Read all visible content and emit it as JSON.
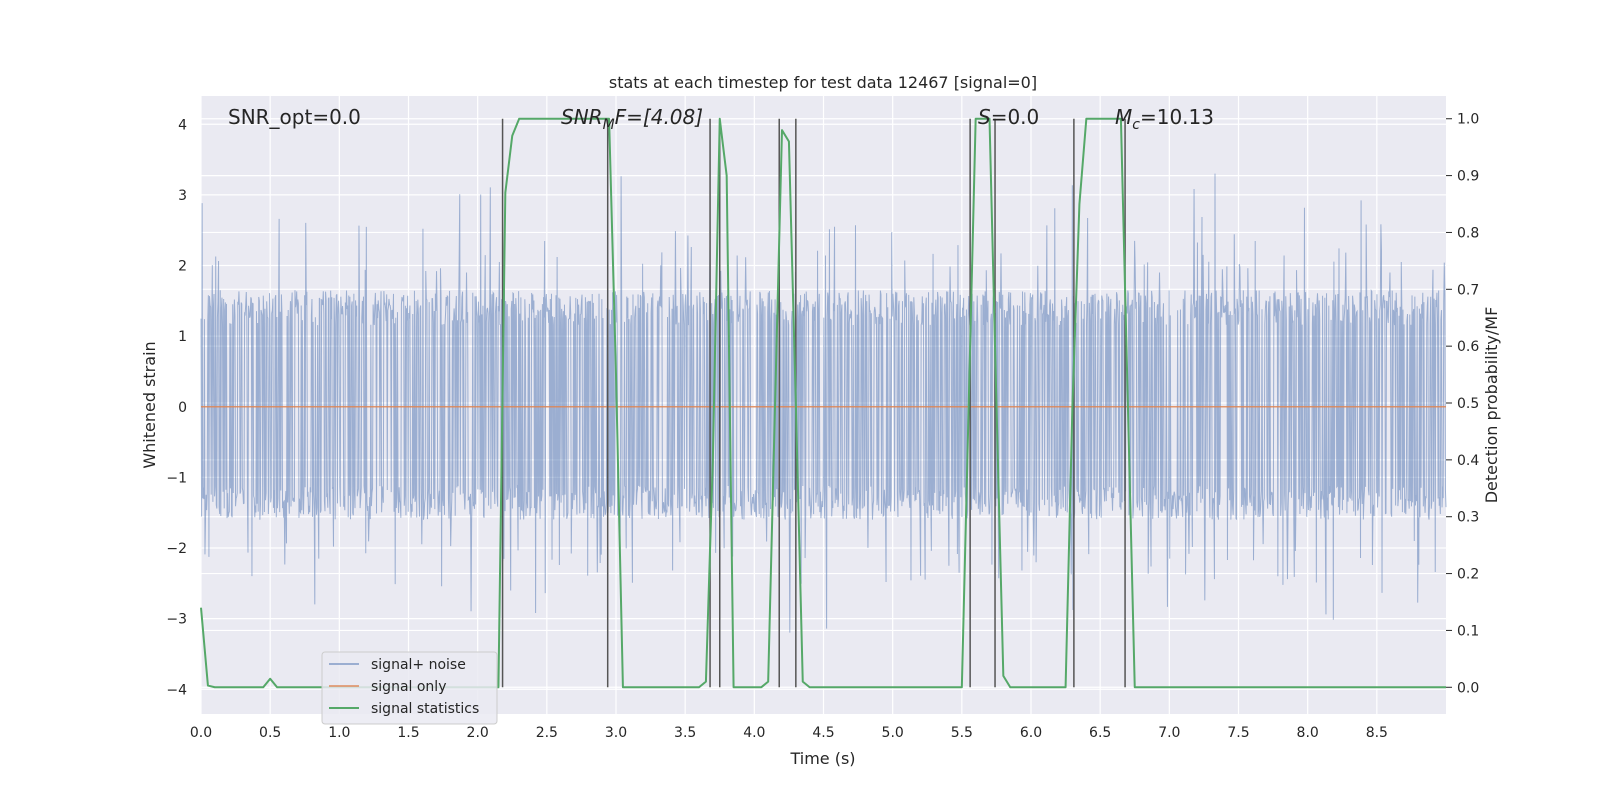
{
  "chart_data": {
    "type": "line",
    "title": "stats at each timestep for test data 12467 [signal=0]",
    "xlabel": "Time (s)",
    "ylabel": "Whitened strain",
    "y2label": "Detection probability/MF",
    "xlim": [
      0.0,
      9.0
    ],
    "ylim": [
      -4.35,
      4.4
    ],
    "y2lim": [
      -0.047,
      1.04
    ],
    "xticks": [
      0.0,
      0.5,
      1.0,
      1.5,
      2.0,
      2.5,
      3.0,
      3.5,
      4.0,
      4.5,
      5.0,
      5.5,
      6.0,
      6.5,
      7.0,
      7.5,
      8.0,
      8.5
    ],
    "xtick_labels": [
      "0.0",
      "0.5",
      "1.0",
      "1.5",
      "2.0",
      "2.5",
      "3.0",
      "3.5",
      "4.0",
      "4.5",
      "5.0",
      "5.5",
      "6.0",
      "6.5",
      "7.0",
      "7.5",
      "8.0",
      "8.5"
    ],
    "yticks": [
      -4,
      -3,
      -2,
      -1,
      0,
      1,
      2,
      3,
      4
    ],
    "ytick_labels": [
      "−4",
      "−3",
      "−2",
      "−1",
      "0",
      "1",
      "2",
      "3",
      "4"
    ],
    "y2ticks": [
      0.0,
      0.1,
      0.2,
      0.3,
      0.4,
      0.5,
      0.6,
      0.7,
      0.8,
      0.9,
      1.0
    ],
    "y2tick_labels": [
      "0.0",
      "0.1",
      "0.2",
      "0.3",
      "0.4",
      "0.5",
      "0.6",
      "0.7",
      "0.8",
      "0.9",
      "1.0"
    ],
    "grid": true,
    "legend_position": "bottom-left",
    "series": [
      {
        "name": "signal+ noise",
        "color": "#4c72b0",
        "kind": "noise",
        "sigma": 0.9,
        "bulk_range": [
          -1.6,
          1.65
        ],
        "spike_range": [
          -3.8,
          3.4
        ]
      },
      {
        "name": "signal only",
        "color": "#dd8452",
        "x": [
          0.0,
          9.0
        ],
        "y": [
          0.0,
          0.0
        ]
      },
      {
        "name": "signal statistics",
        "color": "#55a868",
        "axis": "right",
        "x": [
          0.0,
          0.05,
          0.1,
          0.15,
          0.45,
          0.5,
          0.55,
          0.6,
          1.0,
          2.15,
          2.2,
          2.25,
          2.3,
          2.35,
          2.9,
          2.95,
          3.0,
          3.05,
          3.6,
          3.65,
          3.7,
          3.75,
          3.8,
          3.85,
          4.05,
          4.1,
          4.15,
          4.2,
          4.25,
          4.3,
          4.35,
          4.4,
          4.45,
          4.5,
          5.5,
          5.55,
          5.6,
          5.65,
          5.7,
          5.75,
          5.8,
          5.85,
          5.9,
          6.25,
          6.3,
          6.35,
          6.4,
          6.45,
          6.65,
          6.7,
          6.75,
          6.8,
          6.85,
          7.0,
          9.0
        ],
        "y": [
          0.14,
          0.003,
          0.0,
          0.0,
          0.0,
          0.015,
          0.0,
          0.0,
          0.0,
          0.0,
          0.87,
          0.97,
          1.0,
          1.0,
          1.0,
          1.0,
          0.55,
          0.0,
          0.0,
          0.01,
          0.4,
          1.0,
          0.9,
          0.0,
          0.0,
          0.01,
          0.5,
          0.98,
          0.96,
          0.5,
          0.01,
          0.0,
          0.0,
          0.0,
          0.0,
          0.5,
          1.0,
          1.0,
          1.0,
          0.5,
          0.02,
          0.0,
          0.0,
          0.0,
          0.5,
          0.85,
          1.0,
          1.0,
          1.0,
          0.5,
          0.0,
          0.0,
          0.0,
          0.0,
          0.0
        ]
      }
    ],
    "vlines": [
      2.18,
      2.94,
      3.68,
      3.75,
      4.18,
      4.3,
      5.56,
      5.74,
      6.31,
      6.68
    ],
    "vline_color": "#555555",
    "annotations": [
      "SNR_opt=0.0",
      "SNR_MF=[4.08]",
      "S=0.0",
      "M_c=10.13"
    ]
  },
  "annotation_parts": {
    "snr_opt": "SNR_opt=0.0",
    "snr_mf_main": "SNR",
    "snr_mf_sub": "M",
    "snr_mf_rest": "F=[4.08]",
    "s_main": "S",
    "s_rest": "=0.0",
    "mc_main": "M",
    "mc_sub": "c",
    "mc_rest": "=10.13"
  },
  "legend": {
    "items": [
      {
        "label": "signal+ noise",
        "color": "#4c72b0"
      },
      {
        "label": "signal only",
        "color": "#dd8452"
      },
      {
        "label": "signal statistics",
        "color": "#55a868"
      }
    ]
  }
}
